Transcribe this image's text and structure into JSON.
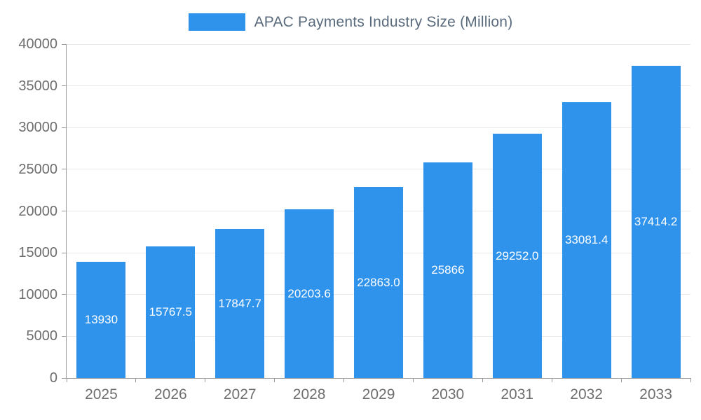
{
  "chart_data": {
    "type": "bar",
    "title": "APAC Payments Industry Size (Million)",
    "categories": [
      "2025",
      "2026",
      "2027",
      "2028",
      "2029",
      "2030",
      "2031",
      "2032",
      "2033"
    ],
    "values": [
      13930,
      15767.5,
      17847.7,
      20203.6,
      22863.0,
      25866,
      29252.0,
      33081.4,
      37414.2
    ],
    "bar_labels": [
      "13930",
      "15767.5",
      "17847.7",
      "20203.6",
      "22863.0",
      "25866",
      "29252.0",
      "33081.4",
      "37414.2"
    ],
    "series_name": "APAC Payments Industry Size (Million)",
    "xlabel": "",
    "ylabel": "",
    "ylim": [
      0,
      40000
    ],
    "yticks": [
      0,
      5000,
      10000,
      15000,
      20000,
      25000,
      30000,
      35000,
      40000
    ],
    "grid": true,
    "legend_position": "top-center",
    "colors": {
      "bar": "#2F93EC",
      "bar_label_text": "#FFFFFF",
      "title_text": "#5A6B7D",
      "axis_label_text": "#6E6E6E",
      "gridline": "#E8E8E8",
      "axis_line": "#999999",
      "background": "#FFFFFF"
    }
  }
}
